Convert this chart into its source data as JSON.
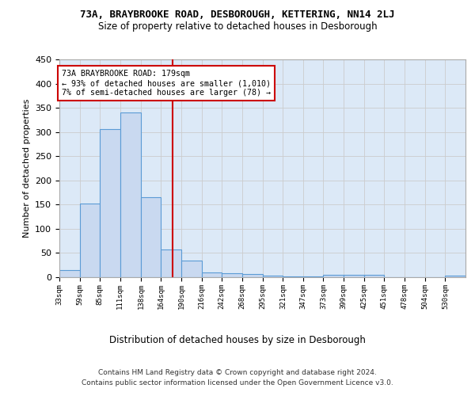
{
  "title_line1": "73A, BRAYBROOKE ROAD, DESBOROUGH, KETTERING, NN14 2LJ",
  "title_line2": "Size of property relative to detached houses in Desborough",
  "xlabel": "Distribution of detached houses by size in Desborough",
  "ylabel": "Number of detached properties",
  "bar_edges": [
    33,
    59,
    85,
    111,
    138,
    164,
    190,
    216,
    242,
    268,
    295,
    321,
    347,
    373,
    399,
    425,
    451,
    478,
    504,
    530,
    556
  ],
  "bar_heights": [
    15,
    152,
    306,
    341,
    166,
    57,
    34,
    10,
    9,
    6,
    3,
    2,
    2,
    5,
    5,
    5,
    0,
    0,
    0,
    4
  ],
  "bar_color": "#c9d9f0",
  "bar_edge_color": "#5b9bd5",
  "grid_color": "#cccccc",
  "bg_color": "#dce9f7",
  "red_line_x": 179,
  "annotation_text": "73A BRAYBROOKE ROAD: 179sqm\n← 93% of detached houses are smaller (1,010)\n7% of semi-detached houses are larger (78) →",
  "annotation_box_color": "#ffffff",
  "annotation_border_color": "#cc0000",
  "ylim": [
    0,
    450
  ],
  "footnote_line1": "Contains HM Land Registry data © Crown copyright and database right 2024.",
  "footnote_line2": "Contains public sector information licensed under the Open Government Licence v3.0."
}
